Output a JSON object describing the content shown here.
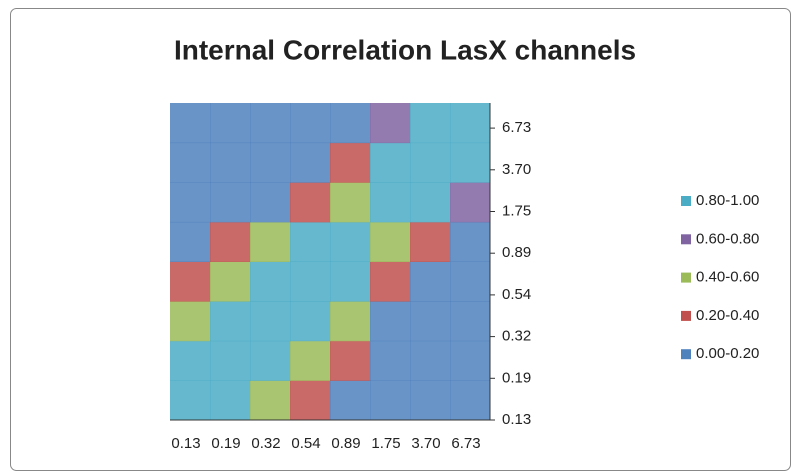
{
  "chart_data": {
    "type": "surface-contour",
    "title": "Internal Correlation LasX channels",
    "x_categories": [
      "0.13",
      "0.19",
      "0.32",
      "0.54",
      "0.89",
      "1.75",
      "3.70",
      "6.73"
    ],
    "y_categories": [
      "0.13",
      "0.19",
      "0.32",
      "0.54",
      "0.89",
      "1.75",
      "3.70",
      "6.73"
    ],
    "bands": [
      {
        "name": "0.80-1.00",
        "color": "#4bacc6"
      },
      {
        "name": "0.60-0.80",
        "color": "#8064a2"
      },
      {
        "name": "0.40-0.60",
        "color": "#9bbb59"
      },
      {
        "name": "0.20-0.40",
        "color": "#c0504d"
      },
      {
        "name": "0.00-0.20",
        "color": "#4f81bd"
      }
    ],
    "values": [
      [
        1.0,
        0.85,
        0.5,
        0.25,
        0.1,
        0.05,
        0.02,
        0.02
      ],
      [
        0.85,
        1.0,
        0.8,
        0.45,
        0.2,
        0.05,
        0.02,
        0.02
      ],
      [
        0.5,
        0.8,
        1.0,
        0.85,
        0.5,
        0.1,
        0.03,
        0.02
      ],
      [
        0.25,
        0.45,
        0.85,
        1.0,
        0.85,
        0.3,
        0.05,
        0.03
      ],
      [
        0.1,
        0.2,
        0.5,
        0.85,
        1.0,
        0.55,
        0.2,
        0.1
      ],
      [
        0.05,
        0.05,
        0.1,
        0.3,
        0.55,
        1.0,
        0.85,
        0.6
      ],
      [
        0.02,
        0.02,
        0.03,
        0.05,
        0.2,
        0.85,
        1.0,
        0.9
      ],
      [
        0.02,
        0.02,
        0.02,
        0.03,
        0.1,
        0.6,
        0.9,
        1.0
      ]
    ]
  }
}
